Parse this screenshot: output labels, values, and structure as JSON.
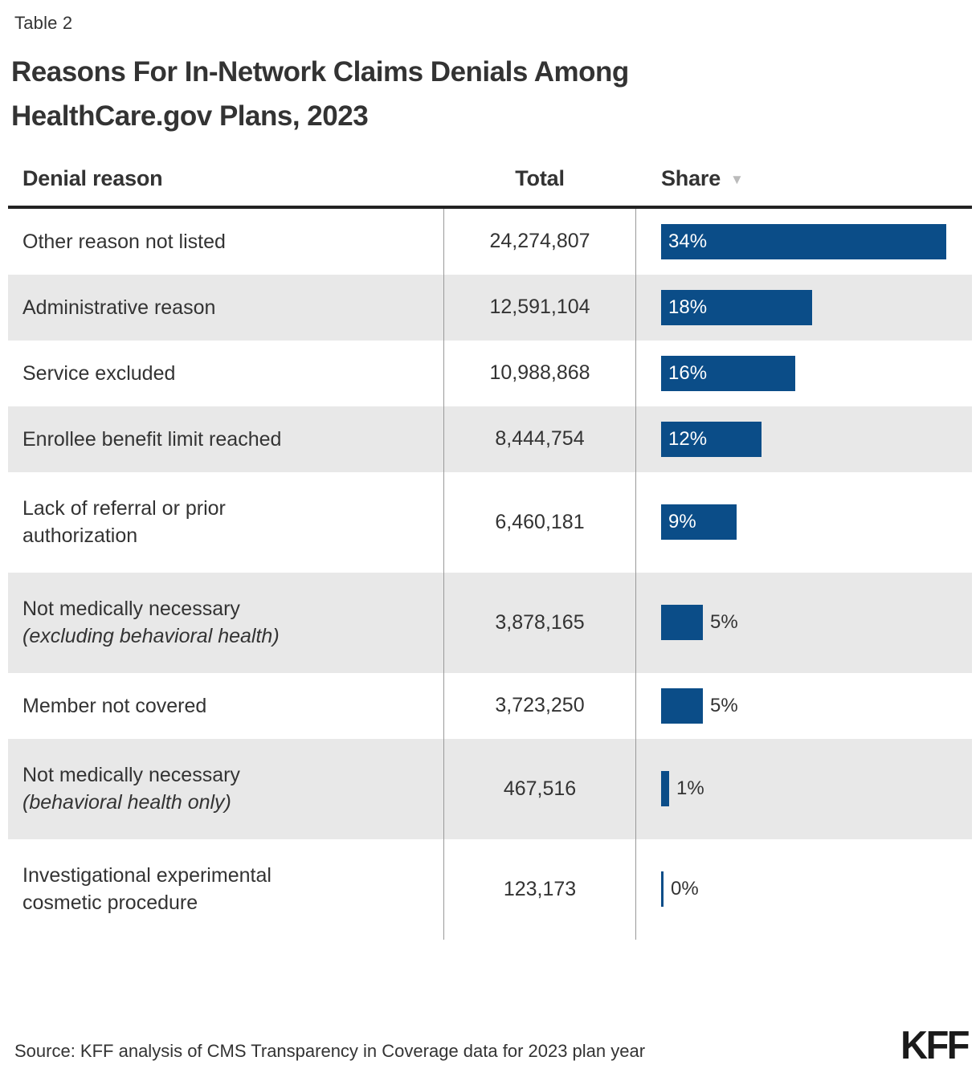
{
  "page": {
    "table_tag": "Table 2",
    "title": "Reasons For In-Network Claims Denials Among HealthCare.gov Plans, 2023",
    "source": "Source: KFF analysis of CMS Transparency in Coverage data for 2023 plan year",
    "logo": "KFF"
  },
  "colors": {
    "bar_blue": "#0b4d88",
    "stripe_gray": "#e8e8e8",
    "text_dark": "#333333",
    "divider_gray": "#999999",
    "header_rule": "#222222",
    "sort_arrow_gray": "#bbbbbb"
  },
  "table": {
    "columns": {
      "reason": "Denial reason",
      "total": "Total",
      "share": "Share"
    },
    "sort": {
      "column": "Share",
      "direction": "desc",
      "indicator": "▼"
    },
    "rows": [
      {
        "reason_lines": [
          {
            "text": "Other reason not listed",
            "italic": false
          }
        ],
        "total": "24,274,807",
        "share_pct": 34,
        "share_label": "34%",
        "label_inside": true
      },
      {
        "reason_lines": [
          {
            "text": "Administrative reason",
            "italic": false
          }
        ],
        "total": "12,591,104",
        "share_pct": 18,
        "share_label": "18%",
        "label_inside": true
      },
      {
        "reason_lines": [
          {
            "text": "Service excluded",
            "italic": false
          }
        ],
        "total": "10,988,868",
        "share_pct": 16,
        "share_label": "16%",
        "label_inside": true
      },
      {
        "reason_lines": [
          {
            "text": "Enrollee benefit limit reached",
            "italic": false
          }
        ],
        "total": "8,444,754",
        "share_pct": 12,
        "share_label": "12%",
        "label_inside": true
      },
      {
        "reason_lines": [
          {
            "text": "Lack of referral or prior",
            "italic": false
          },
          {
            "text": "authorization",
            "italic": false
          }
        ],
        "total": "6,460,181",
        "share_pct": 9,
        "share_label": "9%",
        "label_inside": true
      },
      {
        "reason_lines": [
          {
            "text": "Not medically necessary",
            "italic": false
          },
          {
            "text": "(excluding behavioral health)",
            "italic": true
          }
        ],
        "total": "3,878,165",
        "share_pct": 5,
        "share_label": "5%",
        "label_inside": false
      },
      {
        "reason_lines": [
          {
            "text": "Member not covered",
            "italic": false
          }
        ],
        "total": "3,723,250",
        "share_pct": 5,
        "share_label": "5%",
        "label_inside": false
      },
      {
        "reason_lines": [
          {
            "text": "Not medically necessary",
            "italic": false
          },
          {
            "text": "(behavioral health only)",
            "italic": true
          }
        ],
        "total": "467,516",
        "share_pct": 1,
        "share_label": "1%",
        "label_inside": false
      },
      {
        "reason_lines": [
          {
            "text": "Investigational experimental",
            "italic": false
          },
          {
            "text": "cosmetic procedure",
            "italic": false
          }
        ],
        "total": "123,173",
        "share_pct": 0,
        "share_label": "0%",
        "label_inside": false
      }
    ]
  },
  "chart_data": {
    "type": "bar",
    "orientation": "horizontal",
    "title": "Reasons For In-Network Claims Denials Among HealthCare.gov Plans, 2023",
    "subtitle": "Table 2",
    "categories": [
      "Other reason not listed",
      "Administrative reason",
      "Service excluded",
      "Enrollee benefit limit reached",
      "Lack of referral or prior authorization",
      "Not medically necessary (excluding behavioral health)",
      "Member not covered",
      "Not medically necessary (behavioral health only)",
      "Investigational experimental cosmetic procedure"
    ],
    "series": [
      {
        "name": "Total",
        "values": [
          24274807,
          12591104,
          10988868,
          8444754,
          6460181,
          3878165,
          3723250,
          467516,
          123173
        ]
      },
      {
        "name": "Share (%)",
        "values": [
          34,
          18,
          16,
          12,
          9,
          5,
          5,
          1,
          0
        ]
      }
    ],
    "xlim_share_pct": [
      0,
      40
    ],
    "legend": "none",
    "grid": "off",
    "sort": "Share descending",
    "source": "Source: KFF analysis of CMS Transparency in Coverage data for 2023 plan year"
  }
}
